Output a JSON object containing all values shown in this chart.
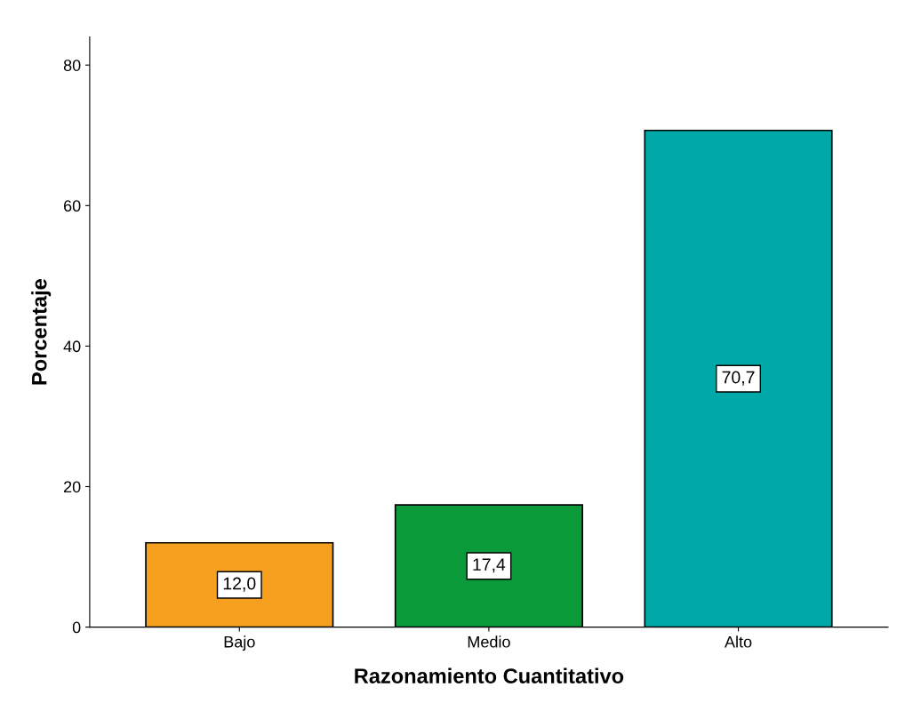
{
  "chart_data": {
    "type": "bar",
    "xlabel": "Razonamiento Cuantitativo",
    "ylabel": "Porcentaje",
    "categories": [
      "Bajo",
      "Medio",
      "Alto"
    ],
    "values": [
      12.0,
      17.4,
      70.7
    ],
    "colors": [
      "#f7a020",
      "#0a9a3a",
      "#00a8a8"
    ],
    "value_labels": [
      "12,0",
      "17,4",
      "70,7"
    ],
    "ylim": [
      0,
      84
    ],
    "yticks": [
      0,
      20,
      40,
      60,
      80
    ],
    "grid": false,
    "legend": false
  }
}
